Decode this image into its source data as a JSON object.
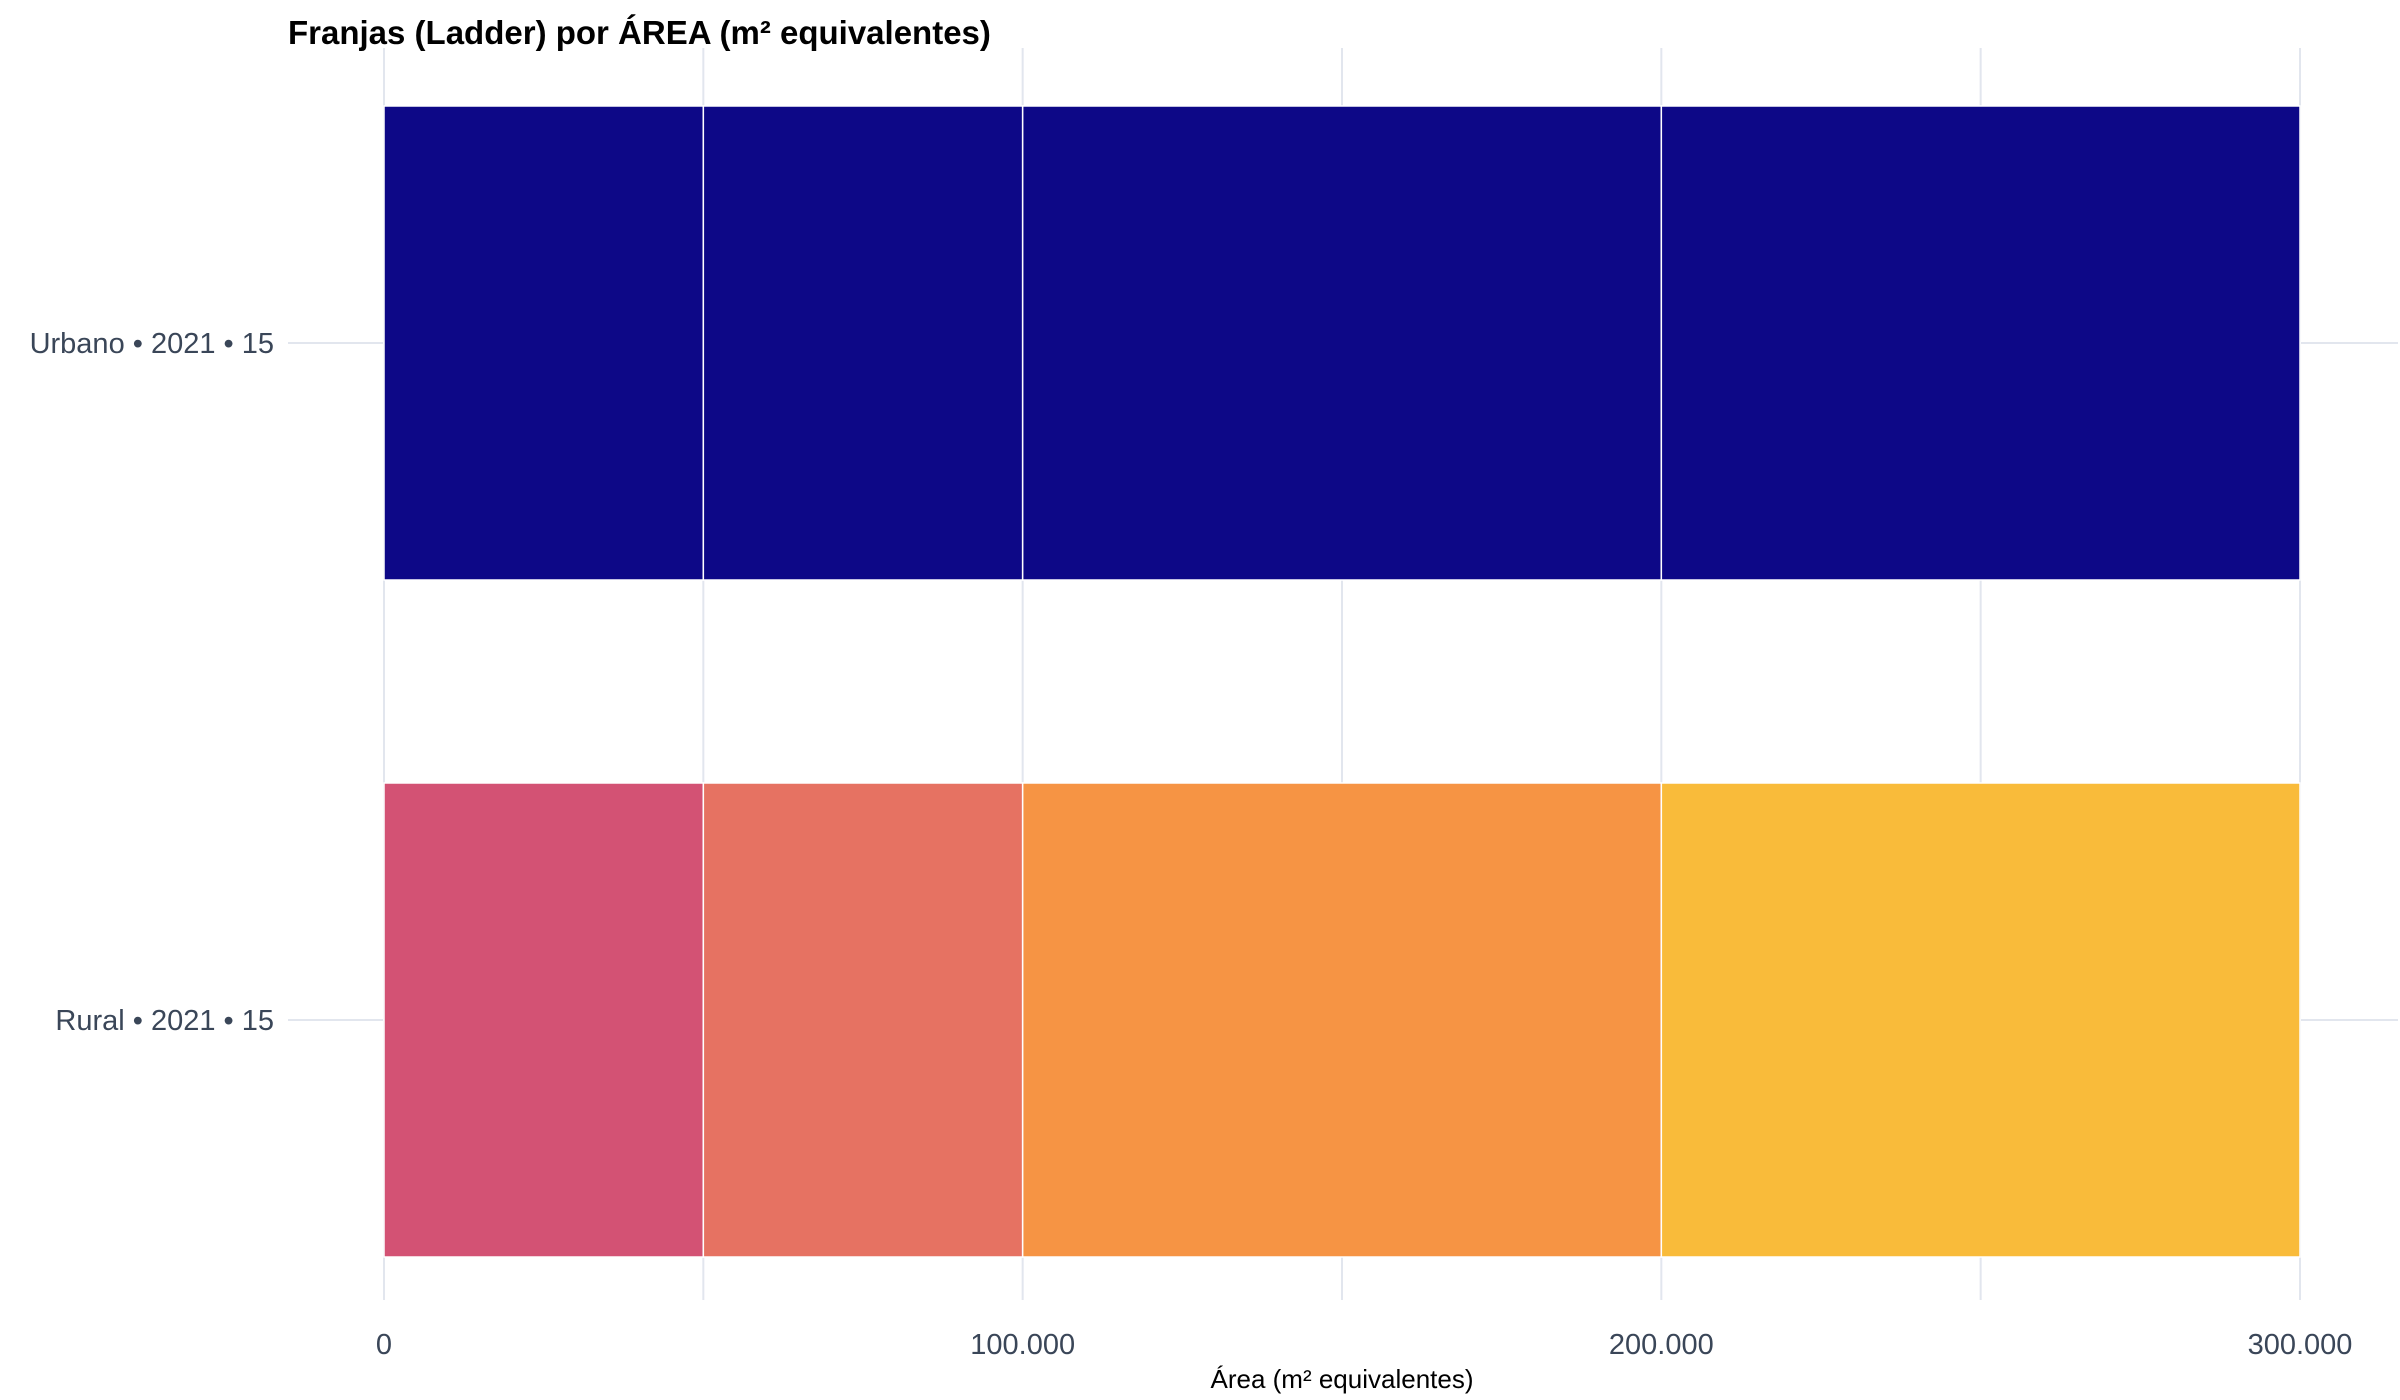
{
  "chart_data": {
    "type": "bar",
    "orientation": "horizontal",
    "stacked": true,
    "title": "Franjas (Ladder) por ÁREA (m² equivalentes)",
    "xlabel": "Área (m² equivalentes)",
    "ylabel": "",
    "xlim": [
      0,
      300000
    ],
    "x_ticks": [
      0,
      100000,
      200000,
      300000
    ],
    "x_tick_labels": [
      "0",
      "100.000",
      "200.000",
      "300.000"
    ],
    "grid": true,
    "legend": "none",
    "categories": [
      "Urbano • 2021 • 15",
      "Rural • 2021 • 15"
    ],
    "bars": [
      {
        "category": "Urbano • 2021 • 15",
        "segments": [
          {
            "start": 0,
            "end": 50000,
            "color": "#0d0887"
          },
          {
            "start": 50000,
            "end": 100000,
            "color": "#0d0887"
          },
          {
            "start": 100000,
            "end": 200000,
            "color": "#0d0887"
          },
          {
            "start": 200000,
            "end": 300000,
            "color": "#0d0887"
          }
        ]
      },
      {
        "category": "Rural • 2021 • 15",
        "segments": [
          {
            "start": 0,
            "end": 50000,
            "color": "#d35274"
          },
          {
            "start": 50000,
            "end": 100000,
            "color": "#e67262"
          },
          {
            "start": 100000,
            "end": 200000,
            "color": "#f69444"
          },
          {
            "start": 200000,
            "end": 300000,
            "color": "#f9bb3a"
          }
        ]
      }
    ]
  }
}
